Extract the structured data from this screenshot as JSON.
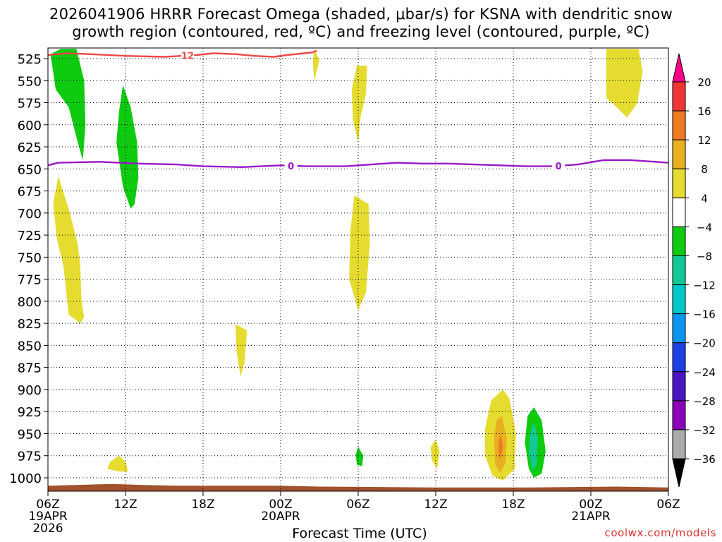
{
  "title_line1": "2026041906 HRRR Forecast Omega (shaded, μbar/s) for KSNA with dendritic snow",
  "title_line2": "growth region (contoured, red, ºC) and freezing level (contoured, purple, ºC)",
  "credit": "coolwx.com/models",
  "chart_data": {
    "type": "heatmap",
    "xlabel": "Forecast Time (UTC)",
    "ylabel": "",
    "y_scale": "linear",
    "y_inverted": true,
    "y_ticks": [
      525,
      550,
      575,
      600,
      625,
      650,
      675,
      700,
      725,
      750,
      775,
      800,
      825,
      850,
      875,
      900,
      925,
      950,
      975,
      1000
    ],
    "x_ticks": [
      {
        "hours": 0,
        "label": "06Z",
        "sub": "19APR",
        "sub2": "2026"
      },
      {
        "hours": 6,
        "label": "12Z",
        "sub": "",
        "sub2": ""
      },
      {
        "hours": 12,
        "label": "18Z",
        "sub": "",
        "sub2": ""
      },
      {
        "hours": 18,
        "label": "00Z",
        "sub": "20APR",
        "sub2": ""
      },
      {
        "hours": 24,
        "label": "06Z",
        "sub": "",
        "sub2": ""
      },
      {
        "hours": 30,
        "label": "12Z",
        "sub": "",
        "sub2": ""
      },
      {
        "hours": 36,
        "label": "18Z",
        "sub": "",
        "sub2": ""
      },
      {
        "hours": 42,
        "label": "00Z",
        "sub": "21APR",
        "sub2": ""
      },
      {
        "hours": 48,
        "label": "06Z",
        "sub": "",
        "sub2": ""
      }
    ],
    "colorbar": {
      "labels": [
        "20",
        "16",
        "12",
        "8",
        "4",
        "−4",
        "−8",
        "−12",
        "−16",
        "−20",
        "−24",
        "−28",
        "−32",
        "−36"
      ],
      "colors": [
        "#ff0088",
        "#f03535",
        "#ee7a22",
        "#e8b020",
        "#e6dc30",
        "#ffffff",
        "#0fcb0f",
        "#10c898",
        "#00c8c8",
        "#0a96f0",
        "#1f3fe6",
        "#4a16c0",
        "#8c00b8",
        "#aaaaaa",
        "#000000"
      ]
    },
    "contours": [
      {
        "name": "dendritic_growth",
        "label": "12",
        "color": "#f04646",
        "points": [
          [
            -0.3,
            521
          ],
          [
            1.5,
            519
          ],
          [
            3.2,
            520
          ],
          [
            6,
            522
          ],
          [
            9,
            523
          ],
          [
            11.5,
            521
          ],
          [
            12.8,
            519
          ],
          [
            14.5,
            520
          ],
          [
            16,
            522
          ],
          [
            17.5,
            523
          ],
          [
            18.5,
            521
          ],
          [
            20.5,
            518
          ],
          [
            20.8,
            516
          ]
        ]
      },
      {
        "name": "freezing_level",
        "label": "0",
        "color": "#9a18c8",
        "points": [
          [
            -0.3,
            646
          ],
          [
            0.8,
            643
          ],
          [
            4,
            642
          ],
          [
            7,
            644
          ],
          [
            10,
            645
          ],
          [
            12,
            647
          ],
          [
            15,
            648
          ],
          [
            18,
            646
          ],
          [
            20,
            647
          ],
          [
            23,
            647
          ],
          [
            25,
            645
          ],
          [
            27,
            643
          ],
          [
            29,
            644
          ],
          [
            31,
            644
          ],
          [
            33,
            645
          ],
          [
            35,
            646
          ],
          [
            37,
            647
          ],
          [
            39,
            647
          ],
          [
            41,
            645
          ],
          [
            43,
            640
          ],
          [
            45,
            640
          ],
          [
            47,
            642
          ],
          [
            48,
            643
          ]
        ]
      }
    ],
    "shaded_regions": [
      {
        "value": -6,
        "color": "#0fcb0f",
        "points": [
          [
            1.0,
            514
          ],
          [
            2.2,
            514
          ],
          [
            2.8,
            550
          ],
          [
            2.9,
            600
          ],
          [
            2.7,
            640
          ],
          [
            2.4,
            625
          ],
          [
            1.6,
            580
          ],
          [
            0.6,
            560
          ],
          [
            0.2,
            520
          ]
        ]
      },
      {
        "value": -6,
        "color": "#0fcb0f",
        "points": [
          [
            5.8,
            555
          ],
          [
            6.4,
            580
          ],
          [
            6.9,
            620
          ],
          [
            7.0,
            660
          ],
          [
            6.7,
            690
          ],
          [
            6.4,
            695
          ],
          [
            5.8,
            670
          ],
          [
            5.3,
            620
          ],
          [
            5.5,
            585
          ]
        ]
      },
      {
        "value": 5,
        "color": "#e6dc30",
        "points": [
          [
            0.8,
            658
          ],
          [
            1.7,
            700
          ],
          [
            2.3,
            735
          ],
          [
            2.5,
            760
          ],
          [
            2.6,
            800
          ],
          [
            2.8,
            818
          ],
          [
            2.5,
            825
          ],
          [
            1.6,
            815
          ],
          [
            1.2,
            760
          ],
          [
            0.7,
            730
          ],
          [
            0.4,
            690
          ]
        ]
      },
      {
        "value": 5,
        "color": "#e6dc30",
        "points": [
          [
            14.5,
            826
          ],
          [
            15.4,
            833
          ],
          [
            15.2,
            870
          ],
          [
            14.9,
            885
          ],
          [
            14.6,
            858
          ]
        ]
      },
      {
        "value": 5,
        "color": "#e6dc30",
        "points": [
          [
            20.6,
            514
          ],
          [
            21.0,
            527
          ],
          [
            20.6,
            550
          ],
          [
            20.5,
            530
          ]
        ]
      },
      {
        "value": 5,
        "color": "#e6dc30",
        "points": [
          [
            23.9,
            533
          ],
          [
            24.7,
            533
          ],
          [
            24.6,
            565
          ],
          [
            24.2,
            590
          ],
          [
            24.0,
            620
          ],
          [
            23.6,
            595
          ],
          [
            23.5,
            560
          ]
        ]
      },
      {
        "value": 5,
        "color": "#e6dc30",
        "points": [
          [
            23.7,
            680
          ],
          [
            24.8,
            690
          ],
          [
            24.9,
            735
          ],
          [
            24.6,
            790
          ],
          [
            24.0,
            810
          ],
          [
            23.3,
            775
          ],
          [
            23.4,
            720
          ]
        ]
      },
      {
        "value": 5,
        "color": "#e6dc30",
        "points": [
          [
            43.2,
            514
          ],
          [
            45.7,
            514
          ],
          [
            46.0,
            540
          ],
          [
            45.6,
            575
          ],
          [
            44.8,
            592
          ],
          [
            44.0,
            580
          ],
          [
            43.2,
            570
          ],
          [
            43.2,
            530
          ]
        ]
      },
      {
        "value": 5,
        "color": "#e6dc30",
        "points": [
          [
            5.5,
            975
          ],
          [
            6.0,
            982
          ],
          [
            6.2,
            993
          ],
          [
            5.5,
            993
          ],
          [
            4.6,
            990
          ],
          [
            4.8,
            982
          ]
        ]
      },
      {
        "value": 5,
        "color": "#e6dc30",
        "points": [
          [
            30,
            957
          ],
          [
            30.3,
            970
          ],
          [
            30.1,
            990
          ],
          [
            29.7,
            980
          ],
          [
            29.6,
            965
          ]
        ]
      },
      {
        "value": 5,
        "color": "#e6dc30",
        "points": [
          [
            35.2,
            900
          ],
          [
            35.7,
            910
          ],
          [
            36.2,
            950
          ],
          [
            36.1,
            990
          ],
          [
            35.2,
            1003
          ],
          [
            34.4,
            998
          ],
          [
            33.8,
            975
          ],
          [
            33.8,
            945
          ],
          [
            34.3,
            912
          ]
        ]
      },
      {
        "value": 10,
        "color": "#e8b020",
        "points": [
          [
            35.1,
            930
          ],
          [
            35.5,
            955
          ],
          [
            35.4,
            983
          ],
          [
            35.0,
            995
          ],
          [
            34.6,
            985
          ],
          [
            34.5,
            955
          ],
          [
            34.7,
            935
          ]
        ]
      },
      {
        "value": 14,
        "color": "#ee7a22",
        "points": [
          [
            35.05,
            950
          ],
          [
            35.2,
            965
          ],
          [
            35.0,
            980
          ],
          [
            34.85,
            970
          ],
          [
            34.9,
            958
          ]
        ]
      },
      {
        "value": -6,
        "color": "#0fcb0f",
        "points": [
          [
            37.6,
            920
          ],
          [
            38.2,
            935
          ],
          [
            38.5,
            970
          ],
          [
            38.2,
            995
          ],
          [
            37.6,
            1000
          ],
          [
            37.2,
            990
          ],
          [
            36.9,
            960
          ],
          [
            37.1,
            930
          ]
        ]
      },
      {
        "value": -10,
        "color": "#10c898",
        "points": [
          [
            37.6,
            937
          ],
          [
            37.9,
            955
          ],
          [
            37.8,
            985
          ],
          [
            37.5,
            992
          ],
          [
            37.2,
            972
          ],
          [
            37.3,
            950
          ]
        ]
      },
      {
        "value": -6,
        "color": "#0fcb0f",
        "points": [
          [
            24,
            965
          ],
          [
            24.4,
            975
          ],
          [
            24.3,
            987
          ],
          [
            23.9,
            985
          ],
          [
            23.8,
            974
          ]
        ]
      }
    ],
    "terrain": {
      "color": "#a0522d",
      "points": [
        [
          -0.3,
          1009
        ],
        [
          5,
          1007
        ],
        [
          7,
          1008
        ],
        [
          10,
          1009
        ],
        [
          18,
          1009
        ],
        [
          21,
          1010
        ],
        [
          30,
          1011
        ],
        [
          37,
          1011
        ],
        [
          44,
          1010
        ],
        [
          48,
          1011
        ]
      ]
    }
  }
}
